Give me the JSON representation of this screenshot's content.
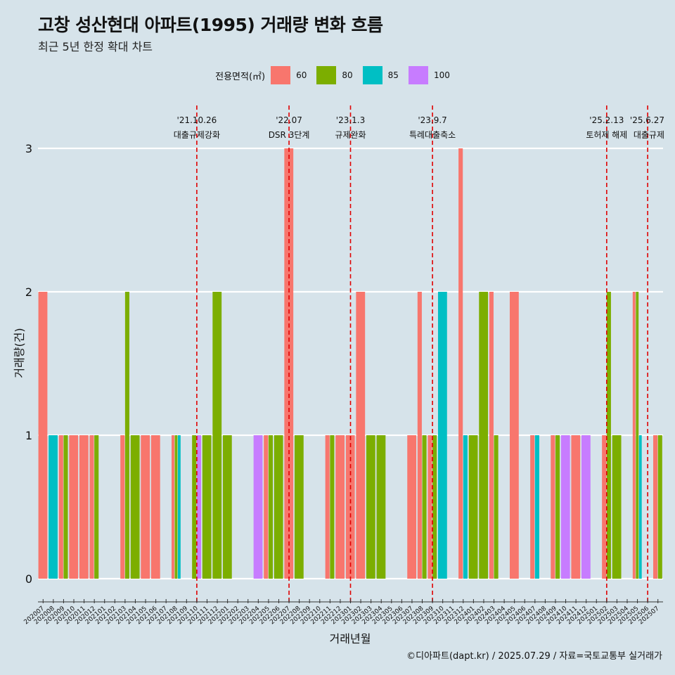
{
  "title": "고창 성산현대 아파트(1995) 거래량 변화 흐름",
  "subtitle": "최근 5년 한정 확대 차트",
  "caption": "©디아파트(dapt.kr) / 2025.07.29 / 자료=국토교통부 실거래가",
  "legend": {
    "title": "전용면적(㎡)",
    "items": [
      {
        "label": "60",
        "color": "#f8766d"
      },
      {
        "label": "80",
        "color": "#7cae00"
      },
      {
        "label": "85",
        "color": "#00bfc4"
      },
      {
        "label": "100",
        "color": "#c77cff"
      }
    ]
  },
  "chart_data": {
    "type": "bar",
    "xlabel": "거래년월",
    "ylabel": "거래량(건)",
    "ylim": [
      0,
      3
    ],
    "yticks": [
      0,
      1,
      2,
      3
    ],
    "grid": true,
    "legend_position": "top",
    "categories": [
      "202007",
      "202008",
      "202009",
      "202010",
      "202011",
      "202012",
      "202101",
      "202102",
      "202103",
      "202104",
      "202105",
      "202106",
      "202107",
      "202108",
      "202109",
      "202110",
      "202111",
      "202112",
      "202201",
      "202202",
      "202203",
      "202204",
      "202205",
      "202206",
      "202207",
      "202208",
      "202209",
      "202210",
      "202211",
      "202212",
      "202301",
      "202302",
      "202303",
      "202304",
      "202305",
      "202306",
      "202307",
      "202308",
      "202309",
      "202310",
      "202311",
      "202312",
      "202401",
      "202402",
      "202403",
      "202404",
      "202405",
      "202406",
      "202407",
      "202408",
      "202409",
      "202410",
      "202411",
      "202412",
      "202501",
      "202502",
      "202503",
      "202504",
      "202505",
      "202506",
      "202507"
    ],
    "series": [
      {
        "name": "60",
        "values": [
          2,
          0,
          1,
          1,
          1,
          1,
          0,
          0,
          1,
          0,
          1,
          1,
          0,
          1,
          0,
          0,
          0,
          0,
          0,
          0,
          0,
          0,
          1,
          0,
          3,
          0,
          0,
          0,
          1,
          1,
          1,
          2,
          0,
          0,
          0,
          0,
          1,
          2,
          1,
          0,
          0,
          3,
          0,
          0,
          2,
          0,
          2,
          0,
          1,
          0,
          1,
          0,
          1,
          0,
          0,
          1,
          0,
          0,
          2,
          0,
          1
        ]
      },
      {
        "name": "80",
        "values": [
          0,
          0,
          1,
          0,
          0,
          1,
          0,
          0,
          2,
          1,
          0,
          0,
          0,
          1,
          0,
          1,
          1,
          2,
          1,
          0,
          0,
          0,
          1,
          1,
          0,
          1,
          0,
          0,
          1,
          0,
          0,
          0,
          1,
          1,
          0,
          0,
          0,
          1,
          1,
          0,
          0,
          0,
          1,
          2,
          1,
          0,
          0,
          0,
          0,
          0,
          1,
          0,
          0,
          0,
          0,
          2,
          1,
          0,
          2,
          0,
          1
        ]
      },
      {
        "name": "85",
        "values": [
          0,
          1,
          0,
          0,
          0,
          0,
          0,
          0,
          0,
          0,
          0,
          0,
          0,
          1,
          0,
          0,
          0,
          0,
          0,
          0,
          0,
          0,
          0,
          0,
          0,
          0,
          0,
          0,
          0,
          0,
          0,
          0,
          0,
          0,
          0,
          0,
          0,
          0,
          0,
          2,
          0,
          1,
          0,
          0,
          0,
          0,
          0,
          0,
          1,
          0,
          0,
          0,
          0,
          0,
          0,
          0,
          0,
          0,
          1,
          0,
          0
        ]
      },
      {
        "name": "100",
        "values": [
          0,
          0,
          0,
          0,
          0,
          0,
          0,
          0,
          0,
          0,
          0,
          0,
          0,
          0,
          0,
          1,
          0,
          0,
          0,
          0,
          0,
          1,
          0,
          0,
          0,
          0,
          0,
          0,
          0,
          0,
          0,
          0,
          0,
          0,
          0,
          0,
          0,
          0,
          0,
          0,
          0,
          0,
          0,
          0,
          0,
          0,
          0,
          0,
          0,
          0,
          0,
          1,
          0,
          1,
          0,
          0,
          0,
          0,
          0,
          0,
          0
        ]
      }
    ],
    "annotations": [
      {
        "date": "'21.10.26",
        "label": "대출규제강화",
        "x": "202110"
      },
      {
        "date": "'22.07",
        "label": "DSR 3단계",
        "x": "202207"
      },
      {
        "date": "'23.1.3",
        "label": "규제완화",
        "x": "202301"
      },
      {
        "date": "'23.9.7",
        "label": "특례대출축소",
        "x": "202309"
      },
      {
        "date": "'25.2.13",
        "label": "토허제 해제",
        "x": "202502"
      },
      {
        "date": "'25.6.27",
        "label": "대출규제",
        "x": "202506"
      }
    ]
  }
}
